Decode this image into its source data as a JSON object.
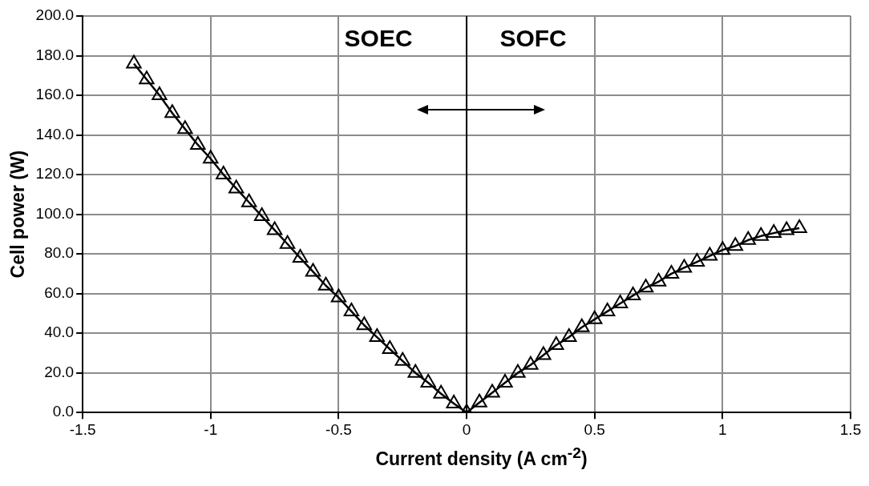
{
  "chart_data": {
    "type": "line",
    "xlabel": "Current density (A cm$^{-2}$)",
    "ylabel": "Cell power (W)",
    "annotations": [
      "SOEC",
      "SOFC"
    ],
    "series": [
      {
        "color": "#000000",
        "x": [
          -1.3,
          -1.25,
          -1.2,
          -1.15,
          -1.1,
          -1.05,
          -1,
          -0.95,
          -0.9,
          -0.85,
          -0.8,
          -0.75,
          -0.7,
          -0.65,
          -0.6,
          -0.55,
          -0.5,
          -0.45,
          -0.4,
          -0.35,
          -0.3,
          -0.25,
          -0.2,
          -0.15,
          -0.1,
          -0.05,
          0,
          0.05,
          0.1,
          0.15,
          0.2,
          0.25,
          0.3,
          0.35,
          0.4,
          0.45,
          0.5,
          0.55,
          0.6,
          0.65,
          0.7,
          0.75,
          0.8,
          0.85,
          0.9,
          0.95,
          1,
          1.05,
          1.1,
          1.15,
          1.2,
          1.25,
          1.3
        ],
        "values": [
          176,
          168,
          160,
          151,
          143,
          135,
          128,
          120,
          113,
          106,
          99,
          92,
          85,
          78,
          71,
          64,
          58,
          51,
          44,
          38,
          32,
          26,
          20,
          15,
          9.5,
          4.5,
          0,
          5,
          10,
          15,
          20,
          24,
          29,
          34,
          38,
          43,
          47,
          51,
          55,
          59,
          63,
          66,
          70,
          73,
          76,
          79,
          82,
          84,
          87,
          89,
          90.5,
          92,
          93
        ]
      }
    ],
    "xlim": [
      -1.5,
      1.5
    ],
    "xticks": [
      -1.5,
      -1,
      -0.5,
      0,
      0.5,
      1,
      1.5
    ],
    "ylim": [
      0,
      200
    ],
    "yticks": [
      {
        "value": 0,
        "label": "0.0"
      },
      {
        "value": 20,
        "label": "20.0"
      },
      {
        "value": 40,
        "label": "40.0"
      },
      {
        "value": 60,
        "label": "60.0"
      },
      {
        "value": 80,
        "label": "80.0"
      },
      {
        "value": 100,
        "label": "100.0"
      },
      {
        "value": 120,
        "label": "120.0"
      },
      {
        "value": 140,
        "label": "140.0"
      },
      {
        "value": 160,
        "label": "160.0"
      },
      {
        "value": 180,
        "label": "180.0"
      },
      {
        "value": 200,
        "label": "200.0"
      }
    ],
    "ref_lines": [
      {
        "axis": "x",
        "value": 0,
        "color": "#000000"
      }
    ],
    "grid": true,
    "legend": false,
    "marker": "triangle",
    "line_style": "solid"
  }
}
